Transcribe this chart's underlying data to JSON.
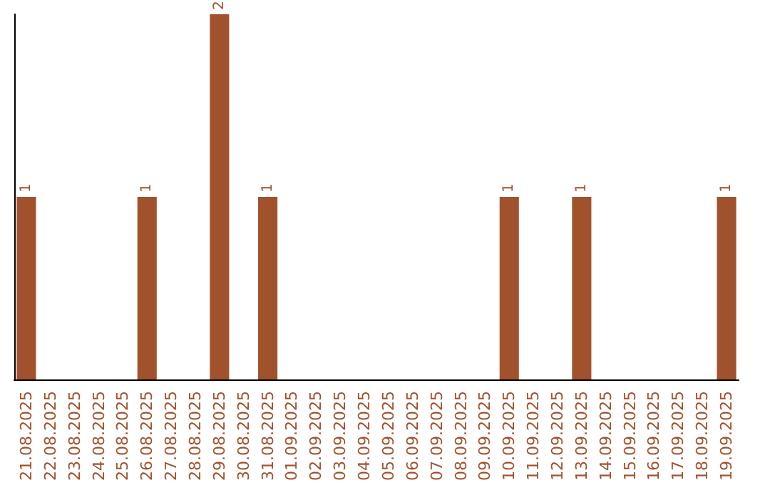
{
  "chart_data": {
    "type": "bar",
    "categories": [
      "21.08.2025",
      "22.08.2025",
      "23.08.2025",
      "24.08.2025",
      "25.08.2025",
      "26.08.2025",
      "27.08.2025",
      "28.08.2025",
      "29.08.2025",
      "30.08.2025",
      "31.08.2025",
      "01.09.2025",
      "02.09.2025",
      "03.09.2025",
      "04.09.2025",
      "05.09.2025",
      "06.09.2025",
      "07.09.2025",
      "08.09.2025",
      "09.09.2025",
      "10.09.2025",
      "11.09.2025",
      "12.09.2025",
      "13.09.2025",
      "14.09.2025",
      "15.09.2025",
      "16.09.2025",
      "17.09.2025",
      "18.09.2025",
      "19.09.2025"
    ],
    "values": [
      1,
      0,
      0,
      0,
      0,
      1,
      0,
      0,
      2,
      0,
      1,
      0,
      0,
      0,
      0,
      0,
      0,
      0,
      0,
      0,
      1,
      0,
      0,
      1,
      0,
      0,
      0,
      0,
      0,
      1
    ],
    "value_labels": [
      "1",
      null,
      null,
      null,
      null,
      "1",
      null,
      null,
      "2",
      null,
      "1",
      null,
      null,
      null,
      null,
      null,
      null,
      null,
      null,
      null,
      "1",
      null,
      null,
      "1",
      null,
      null,
      null,
      null,
      null,
      "1"
    ],
    "color": "#a0522d",
    "grid": false,
    "tick_labels": "x"
  }
}
